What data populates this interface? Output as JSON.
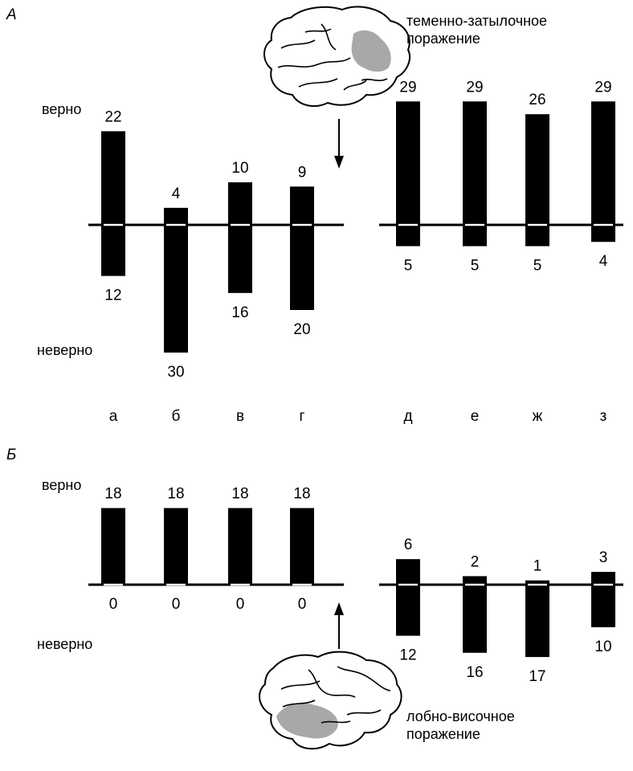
{
  "figure": {
    "lesion_top": [
      "теменно-затылочное",
      "поражение"
    ],
    "lesion_bottom": [
      "лобно-височное",
      "поражение"
    ],
    "correct_label": "верно",
    "incorrect_label": "неверно",
    "colors": {
      "bar": "#000000",
      "lesion": "#a8a8a8",
      "background": "#ffffff"
    },
    "icons": {
      "top": "brain-icon",
      "bottom": "brain-icon",
      "arrows": "arrow-icon"
    }
  },
  "chart_data": [
    {
      "type": "bar",
      "panel": "А",
      "categories": [
        "а",
        "б",
        "в",
        "г",
        "д",
        "е",
        "ж",
        "з"
      ],
      "groups": [
        [
          "а",
          "б",
          "в",
          "г"
        ],
        [
          "д",
          "е",
          "ж",
          "з"
        ]
      ],
      "series": [
        {
          "name": "верно",
          "values": [
            22,
            4,
            10,
            9,
            29,
            29,
            26,
            29
          ]
        },
        {
          "name": "неверно",
          "values": [
            12,
            30,
            16,
            20,
            5,
            5,
            5,
            4
          ]
        }
      ],
      "ylim": [
        -30,
        30
      ],
      "grid": false
    },
    {
      "type": "bar",
      "panel": "Б",
      "categories": [
        "а",
        "б",
        "в",
        "г",
        "д",
        "е",
        "ж",
        "з"
      ],
      "groups": [
        [
          "а",
          "б",
          "в",
          "г"
        ],
        [
          "д",
          "е",
          "ж",
          "з"
        ]
      ],
      "series": [
        {
          "name": "верно",
          "values": [
            18,
            18,
            18,
            18,
            6,
            2,
            1,
            3
          ]
        },
        {
          "name": "неверно",
          "values": [
            0,
            0,
            0,
            0,
            12,
            16,
            17,
            10
          ]
        }
      ],
      "ylim": [
        -30,
        30
      ],
      "grid": false
    }
  ]
}
